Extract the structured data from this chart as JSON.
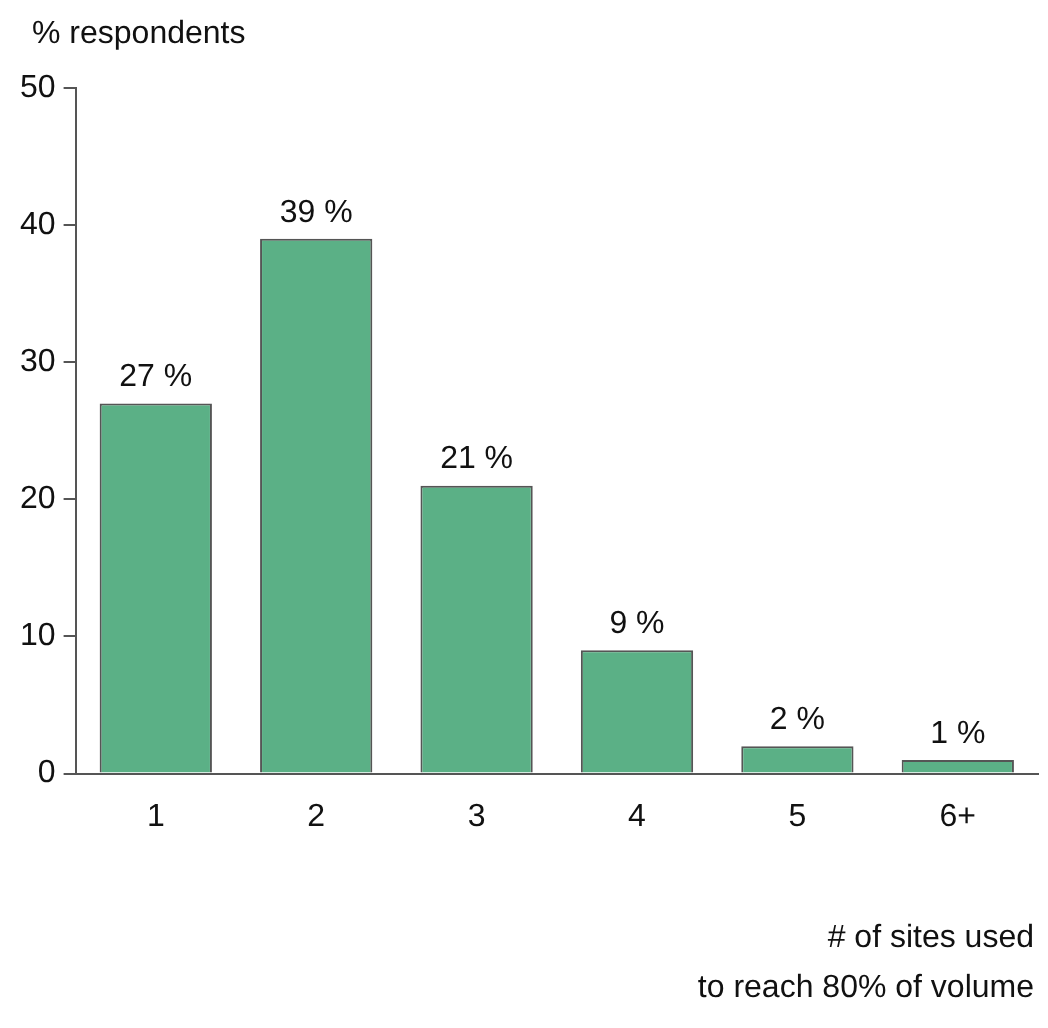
{
  "chart_data": {
    "type": "bar",
    "ylabel": "% respondents",
    "xlabel": "# of sites used\nto reach 80% of volume",
    "categories": [
      "1",
      "2",
      "3",
      "4",
      "5",
      "6+"
    ],
    "values": [
      27,
      39,
      21,
      9,
      2,
      1
    ],
    "value_labels": [
      "27 %",
      "39 %",
      "21 %",
      "9 %",
      "2 %",
      "1 %"
    ],
    "color": "#5bb086",
    "ylim": [
      0,
      50
    ],
    "yticks": [
      0,
      10,
      20,
      30,
      40,
      50
    ],
    "grid": false,
    "legend": false
  }
}
